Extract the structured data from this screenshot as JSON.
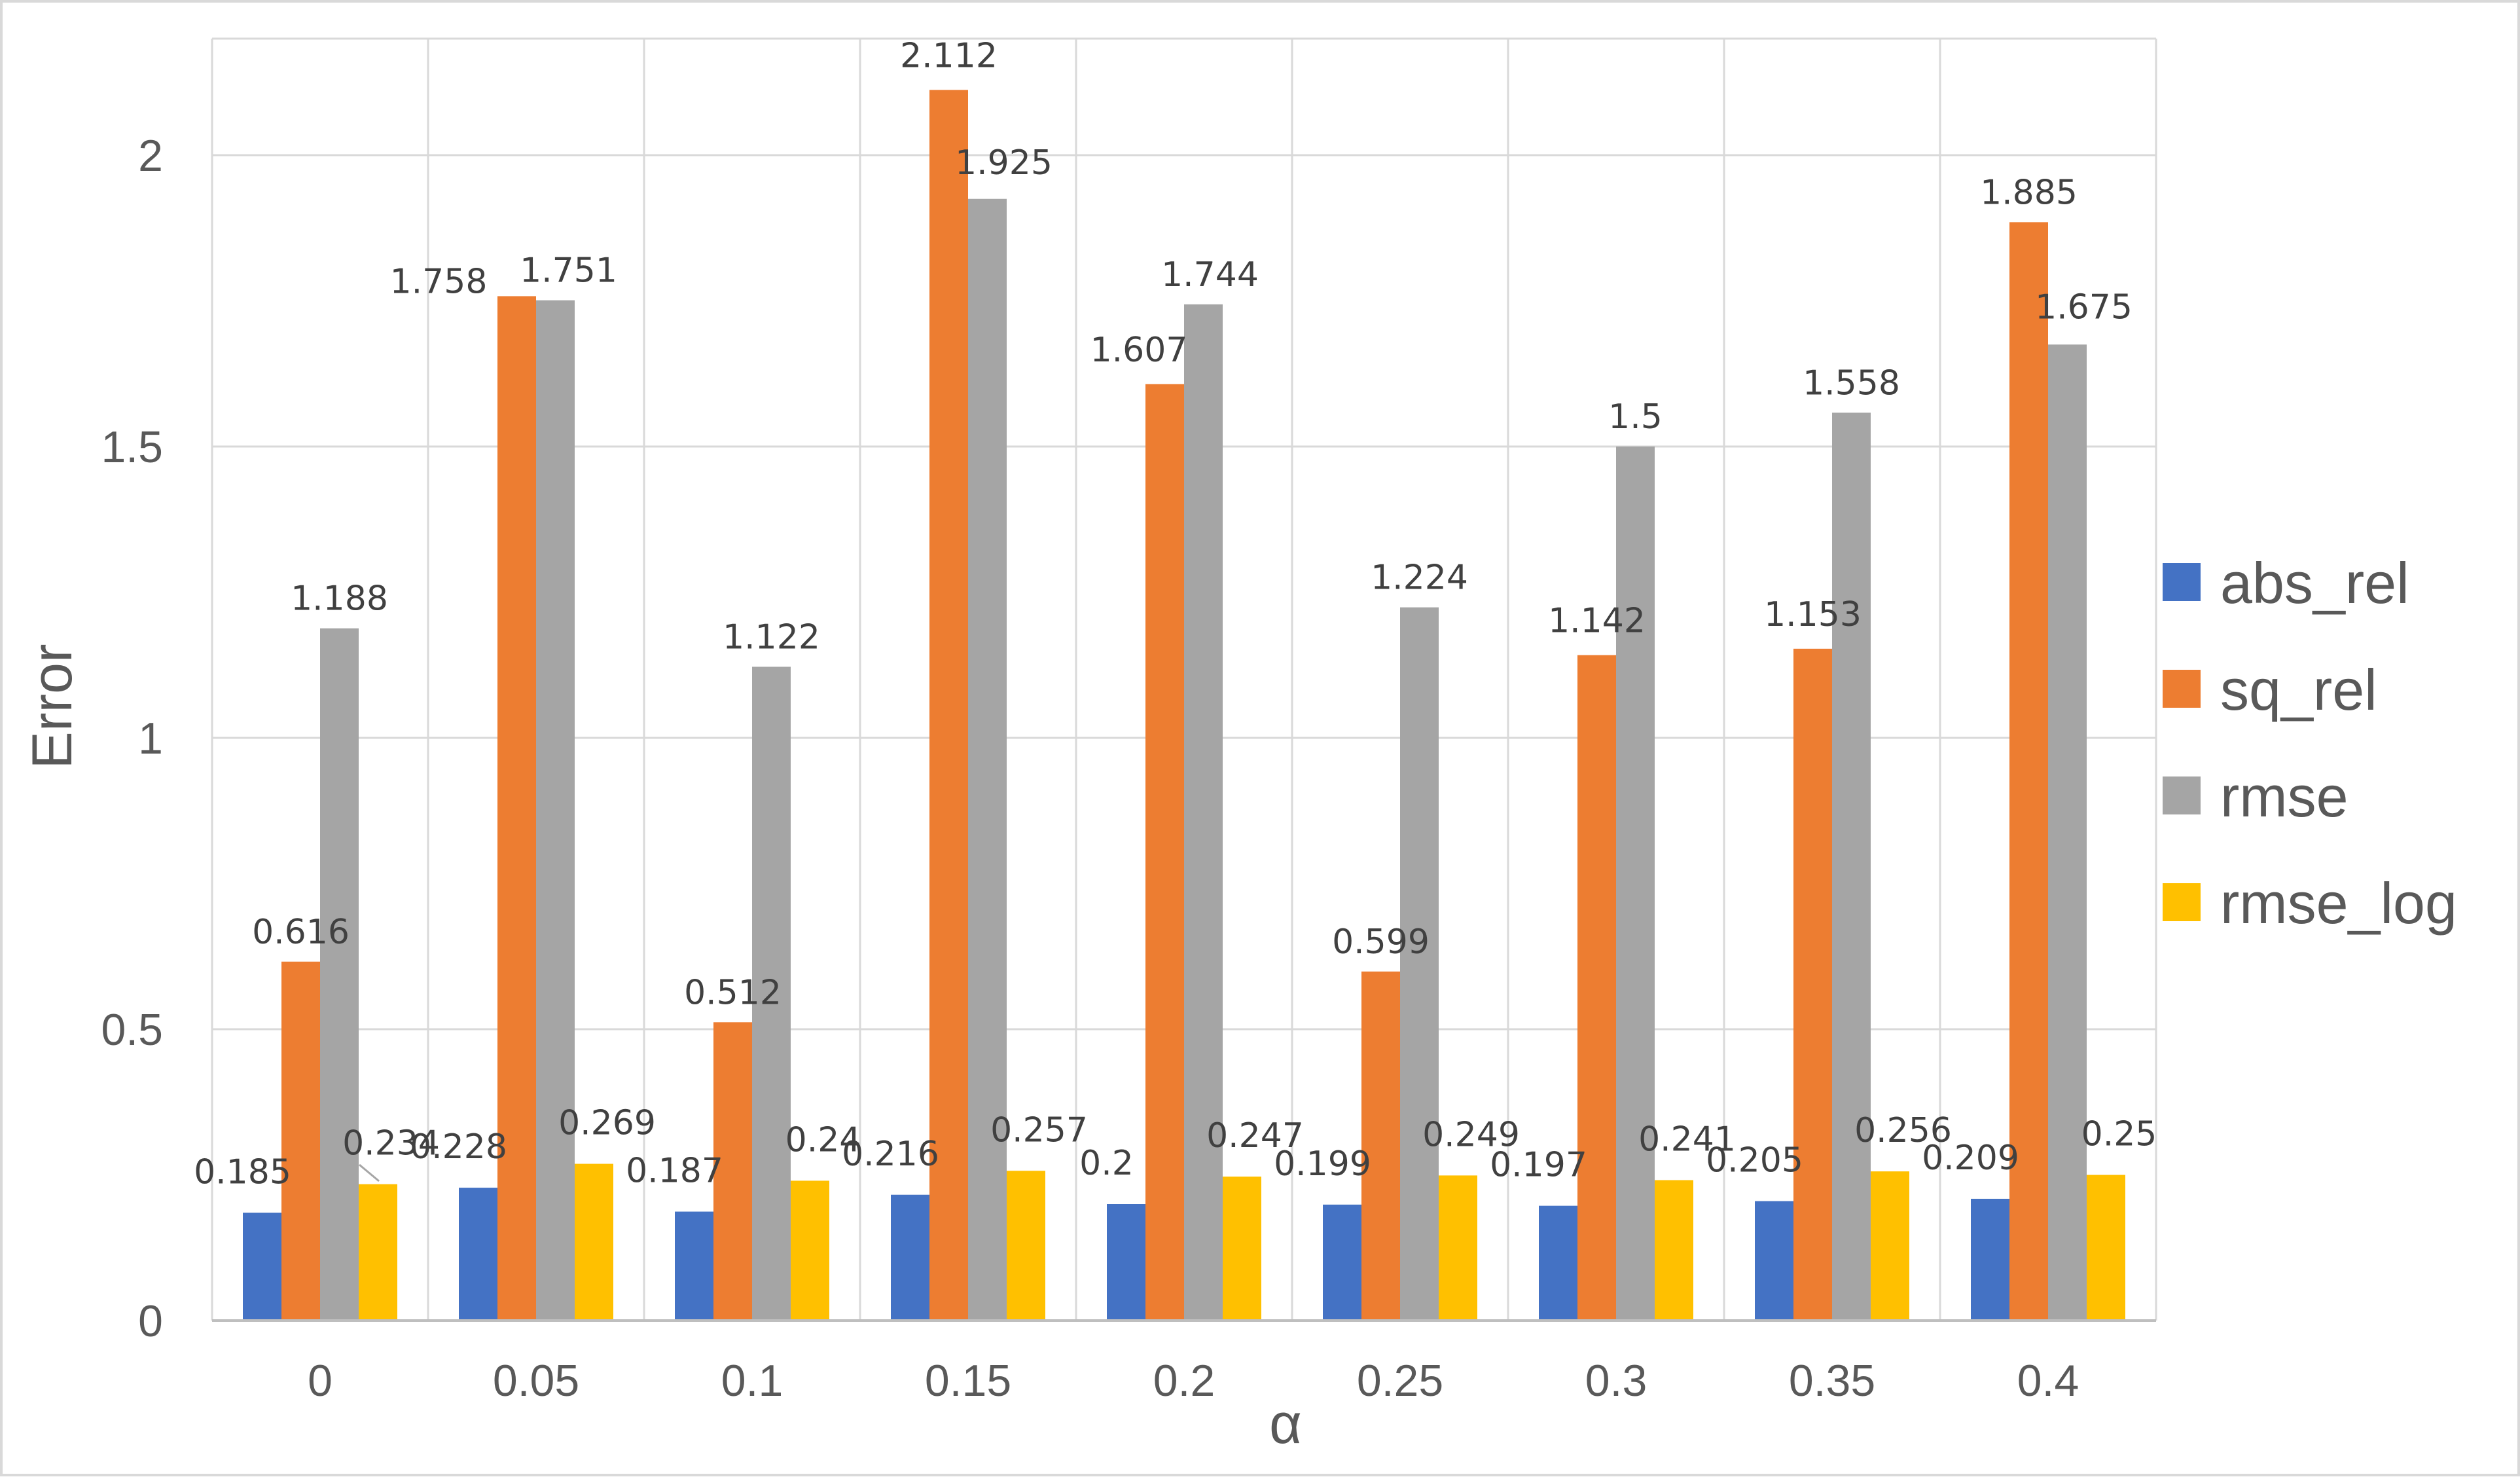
{
  "chart_data": {
    "type": "bar",
    "title": "",
    "xlabel": "α",
    "ylabel": "Error",
    "ylim": [
      0,
      2.2
    ],
    "yticks": [
      0,
      0.5,
      1,
      1.5,
      2
    ],
    "ytick_labels": [
      "0",
      "0.5",
      "1",
      "1.5",
      "2"
    ],
    "grid": true,
    "legend_position": "right",
    "categories": [
      "0",
      "0.05",
      "0.1",
      "0.15",
      "0.2",
      "0.25",
      "0.3",
      "0.35",
      "0.4"
    ],
    "series": [
      {
        "name": "abs_rel",
        "color": "#4472c4",
        "values": [
          0.185,
          0.228,
          0.187,
          0.216,
          0.2,
          0.199,
          0.197,
          0.205,
          0.209
        ],
        "labels": [
          "0.185",
          "0.228",
          "0.187",
          "0.216",
          "0.2",
          "0.199",
          "0.197",
          "0.205",
          "0.209"
        ]
      },
      {
        "name": "sq_rel",
        "color": "#ed7d31",
        "values": [
          0.616,
          1.758,
          0.512,
          2.112,
          1.607,
          0.599,
          1.142,
          1.153,
          1.885
        ],
        "labels": [
          "0.616",
          "1.758",
          "0.512",
          "2.112",
          "1.607",
          "0.599",
          "1.142",
          "1.153",
          "1.885"
        ]
      },
      {
        "name": "rmse",
        "color": "#a5a5a5",
        "values": [
          1.188,
          1.751,
          1.122,
          1.925,
          1.744,
          1.224,
          1.5,
          1.558,
          1.675
        ],
        "labels": [
          "1.188",
          "1.751",
          "1.122",
          "1.925",
          "1.744",
          "1.224",
          "1.5",
          "1.558",
          "1.675"
        ]
      },
      {
        "name": "rmse_log",
        "color": "#ffc000",
        "values": [
          0.234,
          0.269,
          0.24,
          0.257,
          0.247,
          0.249,
          0.241,
          0.256,
          0.25
        ],
        "labels": [
          "0.234",
          "0.269",
          "0.24",
          "0.257",
          "0.247",
          "0.249",
          "0.241",
          "0.256",
          "0.25"
        ]
      }
    ]
  }
}
